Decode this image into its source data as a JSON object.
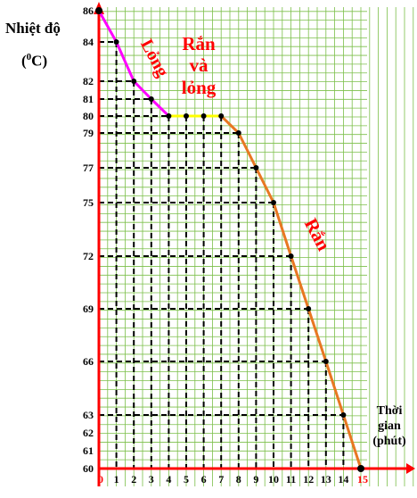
{
  "chart_data": {
    "type": "line",
    "ylabel_line1": "Nhiệt độ",
    "ylabel_line2_base": "(",
    "ylabel_line2_sup": "0",
    "ylabel_line2_rest": "C)",
    "xlabel_line1": "Thời",
    "xlabel_line2": "gian",
    "xlabel_line3": "(phút)",
    "x_ticks": [
      0,
      1,
      2,
      3,
      4,
      5,
      6,
      7,
      8,
      9,
      10,
      11,
      12,
      13,
      14,
      15
    ],
    "y_ticks": [
      60,
      61,
      62,
      63,
      66,
      69,
      72,
      75,
      77,
      79,
      80,
      81,
      82,
      84,
      86
    ],
    "xlim": [
      0,
      15
    ],
    "ylim": [
      60,
      86
    ],
    "grid": true,
    "x": [
      0,
      1,
      2,
      3,
      4,
      5,
      6,
      7,
      8,
      9,
      10,
      11,
      12,
      13,
      14,
      15
    ],
    "y": [
      86,
      84,
      82,
      81,
      80,
      80,
      80,
      80,
      79,
      77,
      75,
      72,
      69,
      66,
      63,
      60
    ],
    "segments": [
      {
        "label": "Lỏng",
        "from_index": 0,
        "to_index": 4,
        "color": "#ff00ff"
      },
      {
        "label": "Rắn và lỏng",
        "from_index": 4,
        "to_index": 7,
        "color": "#ffff00"
      },
      {
        "label": "Rắn",
        "from_index": 7,
        "to_index": 15,
        "color": "#e87722"
      }
    ],
    "annotations": {
      "liquid": "Lỏng",
      "mixed_line1": "Rắn",
      "mixed_line2": "và",
      "mixed_line3": "lỏng",
      "solid": "Rắn"
    },
    "colors": {
      "axis": "#ff0000",
      "grid": "#7cbf4a",
      "label_text": "#ff0000",
      "dashed": "#000000"
    }
  }
}
